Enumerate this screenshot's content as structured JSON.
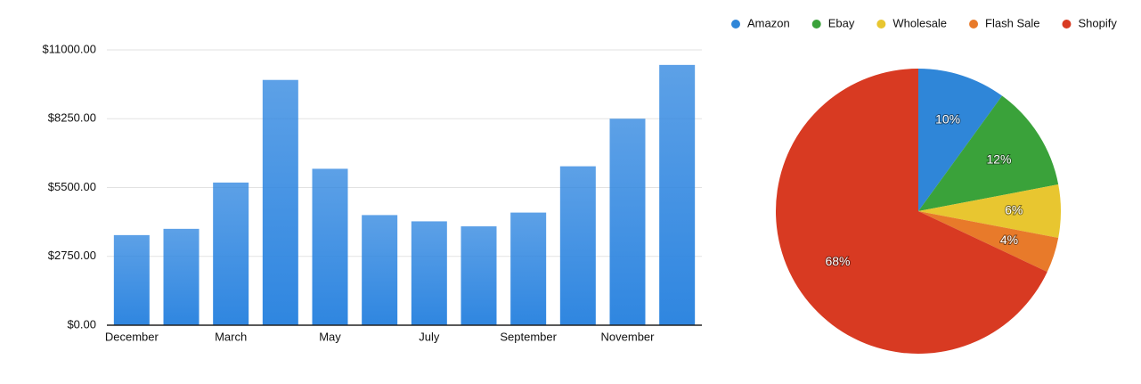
{
  "chart_data": [
    {
      "type": "bar",
      "categories": [
        "December",
        null,
        "March",
        null,
        "May",
        null,
        "July",
        null,
        "September",
        null,
        "November",
        null
      ],
      "values": [
        3600,
        3850,
        5700,
        9800,
        6250,
        4400,
        4150,
        3950,
        4500,
        6350,
        8250,
        10400
      ],
      "color": "#2f86e0",
      "ylim": [
        0,
        11000
      ],
      "yticks": [
        {
          "value": 0,
          "label": "$0.00"
        },
        {
          "value": 2750,
          "label": "$2750.00"
        },
        {
          "value": 5500,
          "label": "$5500.00"
        },
        {
          "value": 8250,
          "label": "$8250.00"
        },
        {
          "value": 11000,
          "label": "$11000.00"
        }
      ],
      "grid": true
    },
    {
      "type": "pie",
      "categories": [
        "Amazon",
        "Ebay",
        "Wholesale",
        "Flash Sale",
        "Shopify"
      ],
      "values": [
        10,
        12,
        6,
        4,
        68
      ],
      "value_labels": [
        "10%",
        "12%",
        "6%",
        "4%",
        "68%"
      ],
      "colors": [
        "#2f86d8",
        "#3aa23a",
        "#e8c630",
        "#e87a2a",
        "#d83a22"
      ],
      "legend": "top"
    }
  ]
}
